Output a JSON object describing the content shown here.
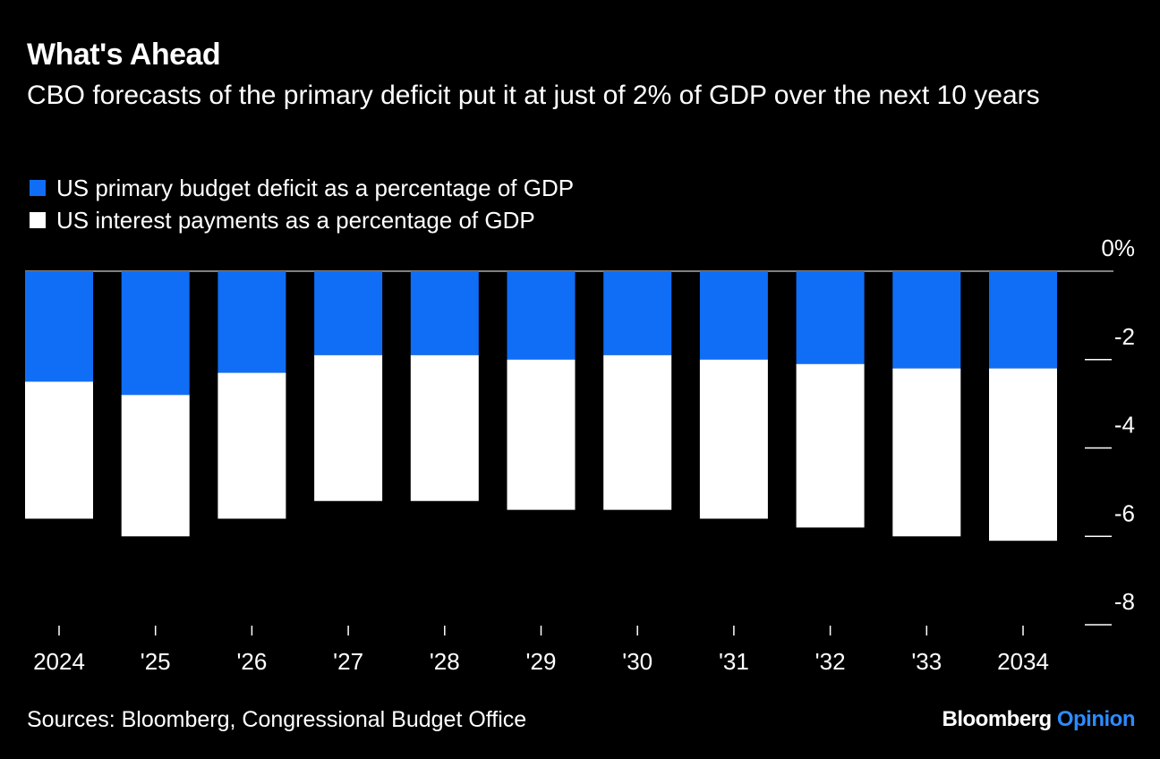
{
  "title": "What's Ahead",
  "subtitle": "CBO forecasts of the primary deficit put it at just of 2% of GDP over the next 10 years",
  "legend": [
    {
      "label": "US primary budget deficit as a percentage of GDP",
      "color": "#0f6ef5"
    },
    {
      "label": "US interest payments as a percentage of GDP",
      "color": "#ffffff"
    }
  ],
  "source": "Sources: Bloomberg, Congressional Budget Office",
  "brand": {
    "name": "Bloomberg",
    "suffix": "Opinion"
  },
  "chart_data": {
    "type": "bar",
    "stacked": true,
    "categories": [
      "2024",
      "'25",
      "'26",
      "'27",
      "'28",
      "'29",
      "'30",
      "'31",
      "'32",
      "'33",
      "2034"
    ],
    "series": [
      {
        "name": "US primary budget deficit as a percentage of GDP",
        "color": "#0f6ef5",
        "values": [
          -2.5,
          -2.8,
          -2.3,
          -1.9,
          -1.9,
          -2.0,
          -1.9,
          -2.0,
          -2.1,
          -2.2,
          -2.2
        ]
      },
      {
        "name": "US interest payments as a percentage of GDP",
        "color": "#ffffff",
        "values": [
          -3.1,
          -3.2,
          -3.3,
          -3.3,
          -3.3,
          -3.4,
          -3.5,
          -3.6,
          -3.7,
          -3.8,
          -3.9
        ]
      }
    ],
    "ylim": [
      -8,
      0
    ],
    "yticks": [
      0,
      -2,
      -4,
      -6,
      -8
    ],
    "ytick_labels": [
      "0%",
      "-2",
      "-4",
      "-6",
      "-8"
    ],
    "ylabel": "",
    "xlabel": "",
    "axis_position": "right",
    "grid": false
  }
}
